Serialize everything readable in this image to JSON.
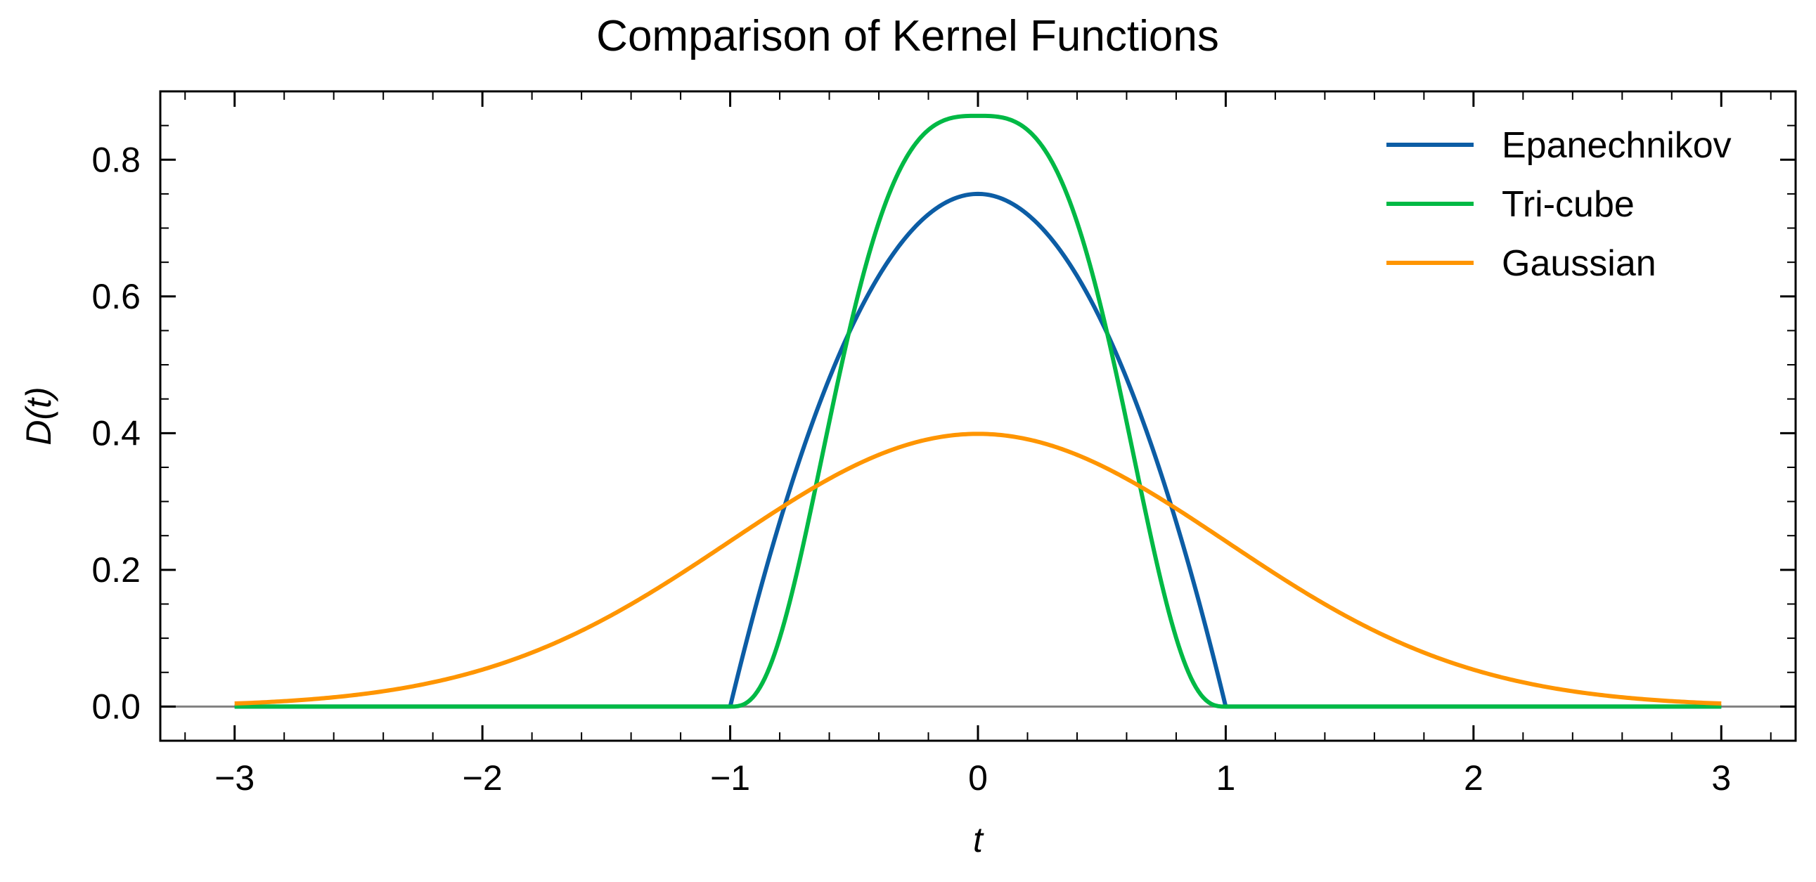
{
  "chart_data": {
    "type": "line",
    "title": "Comparison of Kernel Functions",
    "xlabel": "t",
    "ylabel": "D(t)",
    "xlim": [
      -3.3,
      3.3
    ],
    "ylim": [
      -0.05,
      0.9
    ],
    "x_ticks": [
      -3,
      -2,
      -1,
      0,
      1,
      2,
      3
    ],
    "x_tick_labels": [
      "−3",
      "−2",
      "−1",
      "0",
      "1",
      "2",
      "3"
    ],
    "y_ticks": [
      0.0,
      0.2,
      0.4,
      0.6,
      0.8
    ],
    "y_tick_labels": [
      "0.0",
      "0.2",
      "0.4",
      "0.6",
      "0.8"
    ],
    "grid": false,
    "legend_position": "top-right",
    "baseline": {
      "y": 0,
      "color": "#808080"
    },
    "x": [
      -3.0,
      -2.5,
      -2.0,
      -1.5,
      -1.0,
      -0.9,
      -0.8,
      -0.7,
      -0.6,
      -0.5,
      -0.4,
      -0.3,
      -0.2,
      -0.1,
      0.0,
      0.1,
      0.2,
      0.3,
      0.4,
      0.5,
      0.6,
      0.7,
      0.8,
      0.9,
      1.0,
      1.5,
      2.0,
      2.5,
      3.0
    ],
    "series": [
      {
        "name": "Epanechnikov",
        "color": "#0C5DA5",
        "values": [
          0,
          0,
          0,
          0,
          0,
          0.1425,
          0.27,
          0.3825,
          0.48,
          0.5625,
          0.63,
          0.6825,
          0.72,
          0.7425,
          0.75,
          0.7425,
          0.72,
          0.6825,
          0.63,
          0.5625,
          0.48,
          0.3825,
          0.27,
          0.1425,
          0,
          0,
          0,
          0,
          0
        ]
      },
      {
        "name": "Tri-cube",
        "color": "#00B945",
        "values": [
          0,
          0,
          0,
          0,
          0,
          0.0017,
          0.0789,
          0.2985,
          0.5552,
          0.741,
          0.8332,
          0.8579,
          0.8617,
          0.8642,
          0.8642,
          0.8642,
          0.8617,
          0.8579,
          0.8332,
          0.741,
          0.5552,
          0.2985,
          0.0789,
          0.0017,
          0,
          0,
          0,
          0,
          0
        ]
      },
      {
        "name": "Gaussian",
        "color": "#FF9500",
        "values": [
          0.0044,
          0.0175,
          0.054,
          0.1295,
          0.242,
          0.2661,
          0.2897,
          0.3123,
          0.3332,
          0.3521,
          0.3683,
          0.3814,
          0.391,
          0.397,
          0.3989,
          0.397,
          0.391,
          0.3814,
          0.3683,
          0.3521,
          0.3332,
          0.3123,
          0.2897,
          0.2661,
          0.242,
          0.1295,
          0.054,
          0.0175,
          0.0044
        ]
      }
    ]
  }
}
